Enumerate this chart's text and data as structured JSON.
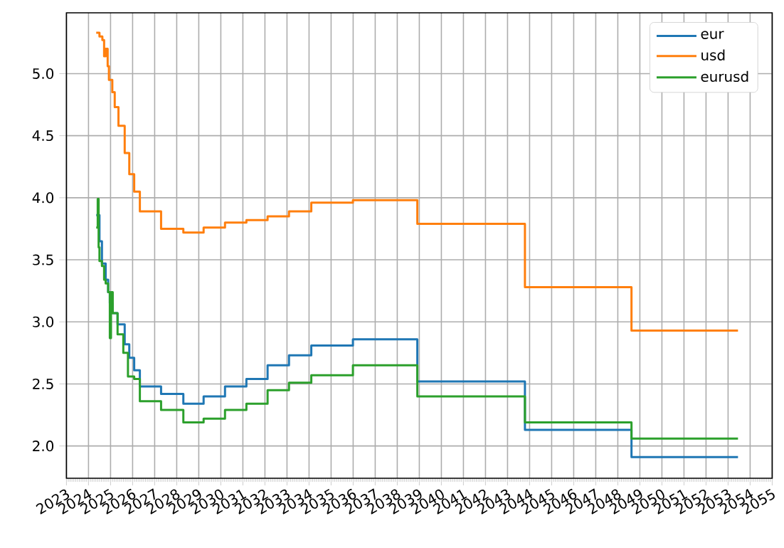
{
  "chart_data": {
    "type": "step",
    "xlim": [
      "2023",
      "2055"
    ],
    "xticks": [
      "2023",
      "2024",
      "2025",
      "2026",
      "2027",
      "2028",
      "2029",
      "2030",
      "2031",
      "2032",
      "2033",
      "2034",
      "2035",
      "2036",
      "2037",
      "2038",
      "2039",
      "2040",
      "2041",
      "2042",
      "2043",
      "2044",
      "2045",
      "2046",
      "2047",
      "2048",
      "2049",
      "2050",
      "2051",
      "2052",
      "2053",
      "2054",
      "2055"
    ],
    "ylim": [
      1.74,
      5.49
    ],
    "yticks": [
      {
        "value": 2,
        "label": "2.0"
      },
      2.5,
      {
        "value": 3,
        "label": "3.0"
      },
      3.5,
      {
        "value": 4,
        "label": "4.0"
      },
      4.5,
      {
        "value": 5,
        "label": "5.0"
      }
    ],
    "grid": true,
    "legend": "top right",
    "series": [
      {
        "name": "eur",
        "color": "#1f77b4",
        "x": [
          "2024-05-08",
          "2024-07-01",
          "2024-08-11",
          "2024-10-12",
          "2024-11-22",
          "2024-12-20",
          "2025-02-06",
          "2025-04-27",
          "2025-08-23",
          "2025-11-07",
          "2026-01-27",
          "2026-05-01",
          "2027-04-17",
          "2028-04-20",
          "2029-03-22",
          "2030-03-11",
          "2031-02-28",
          "2032-02-14",
          "2033-02-03",
          "2034-02-07",
          "2035-12-28",
          "2038-11-29",
          "2043-10-16",
          "2048-08-15",
          "2053-06-14"
        ],
        "values": [
          3.86,
          3.65,
          3.47,
          3.34,
          3.24,
          3.15,
          3.07,
          2.98,
          2.82,
          2.71,
          2.61,
          2.48,
          2.42,
          2.34,
          2.4,
          2.48,
          2.54,
          2.65,
          2.73,
          2.81,
          2.86,
          2.52,
          2.13,
          1.91,
          1.91
        ]
      },
      {
        "name": "usd",
        "color": "#ff7f0e",
        "x": [
          "2024-05-08",
          "2024-07-01",
          "2024-08-18",
          "2024-09-16",
          "2024-10-12",
          "2024-11-14",
          "2024-12-05",
          "2025-01-30",
          "2025-03-11",
          "2025-05-12",
          "2025-08-23",
          "2025-11-07",
          "2026-01-27",
          "2026-05-01",
          "2027-04-17",
          "2028-04-20",
          "2029-03-22",
          "2030-03-11",
          "2031-02-28",
          "2032-02-14",
          "2033-02-03",
          "2034-02-07",
          "2035-12-28",
          "2038-11-29",
          "2043-10-16",
          "2048-08-15",
          "2053-06-14"
        ],
        "values": [
          5.33,
          5.3,
          5.27,
          5.14,
          5.2,
          5.06,
          4.95,
          4.85,
          4.73,
          4.58,
          4.36,
          4.19,
          4.05,
          3.89,
          3.75,
          3.72,
          3.76,
          3.8,
          3.82,
          3.85,
          3.89,
          3.96,
          3.98,
          3.79,
          3.28,
          2.93,
          2.93
        ]
      },
      {
        "name": "eurusd",
        "color": "#2ca02c",
        "x": [
          "2024-05-08",
          "2024-06-02",
          "2024-06-17",
          "2024-07-01",
          "2024-08-11",
          "2024-09-16",
          "2024-10-12",
          "2024-11-22",
          "2024-12-20",
          "2025-01-08",
          "2025-02-06",
          "2025-04-27",
          "2025-07-31",
          "2025-10-16",
          "2026-01-27",
          "2026-05-01",
          "2027-04-17",
          "2028-04-20",
          "2029-03-22",
          "2030-03-11",
          "2031-02-28",
          "2032-02-14",
          "2033-02-03",
          "2034-02-07",
          "2035-12-28",
          "2038-11-29",
          "2043-10-16",
          "2048-08-15",
          "2053-06-14"
        ],
        "values": [
          3.76,
          3.99,
          3.6,
          3.49,
          3.45,
          3.34,
          3.31,
          3.24,
          2.87,
          3.24,
          3.07,
          2.9,
          2.75,
          2.56,
          2.54,
          2.36,
          2.29,
          2.19,
          2.22,
          2.29,
          2.34,
          2.45,
          2.51,
          2.57,
          2.65,
          2.4,
          2.19,
          2.06,
          2.06
        ]
      }
    ]
  }
}
